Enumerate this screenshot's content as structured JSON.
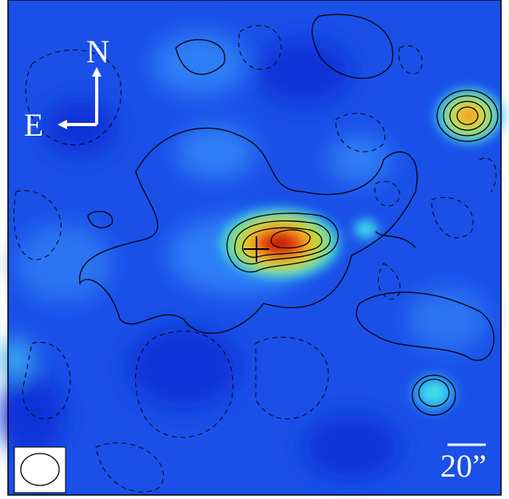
{
  "compass": {
    "north": "N",
    "east": "E"
  },
  "scale_bar": {
    "label": "20”"
  }
}
